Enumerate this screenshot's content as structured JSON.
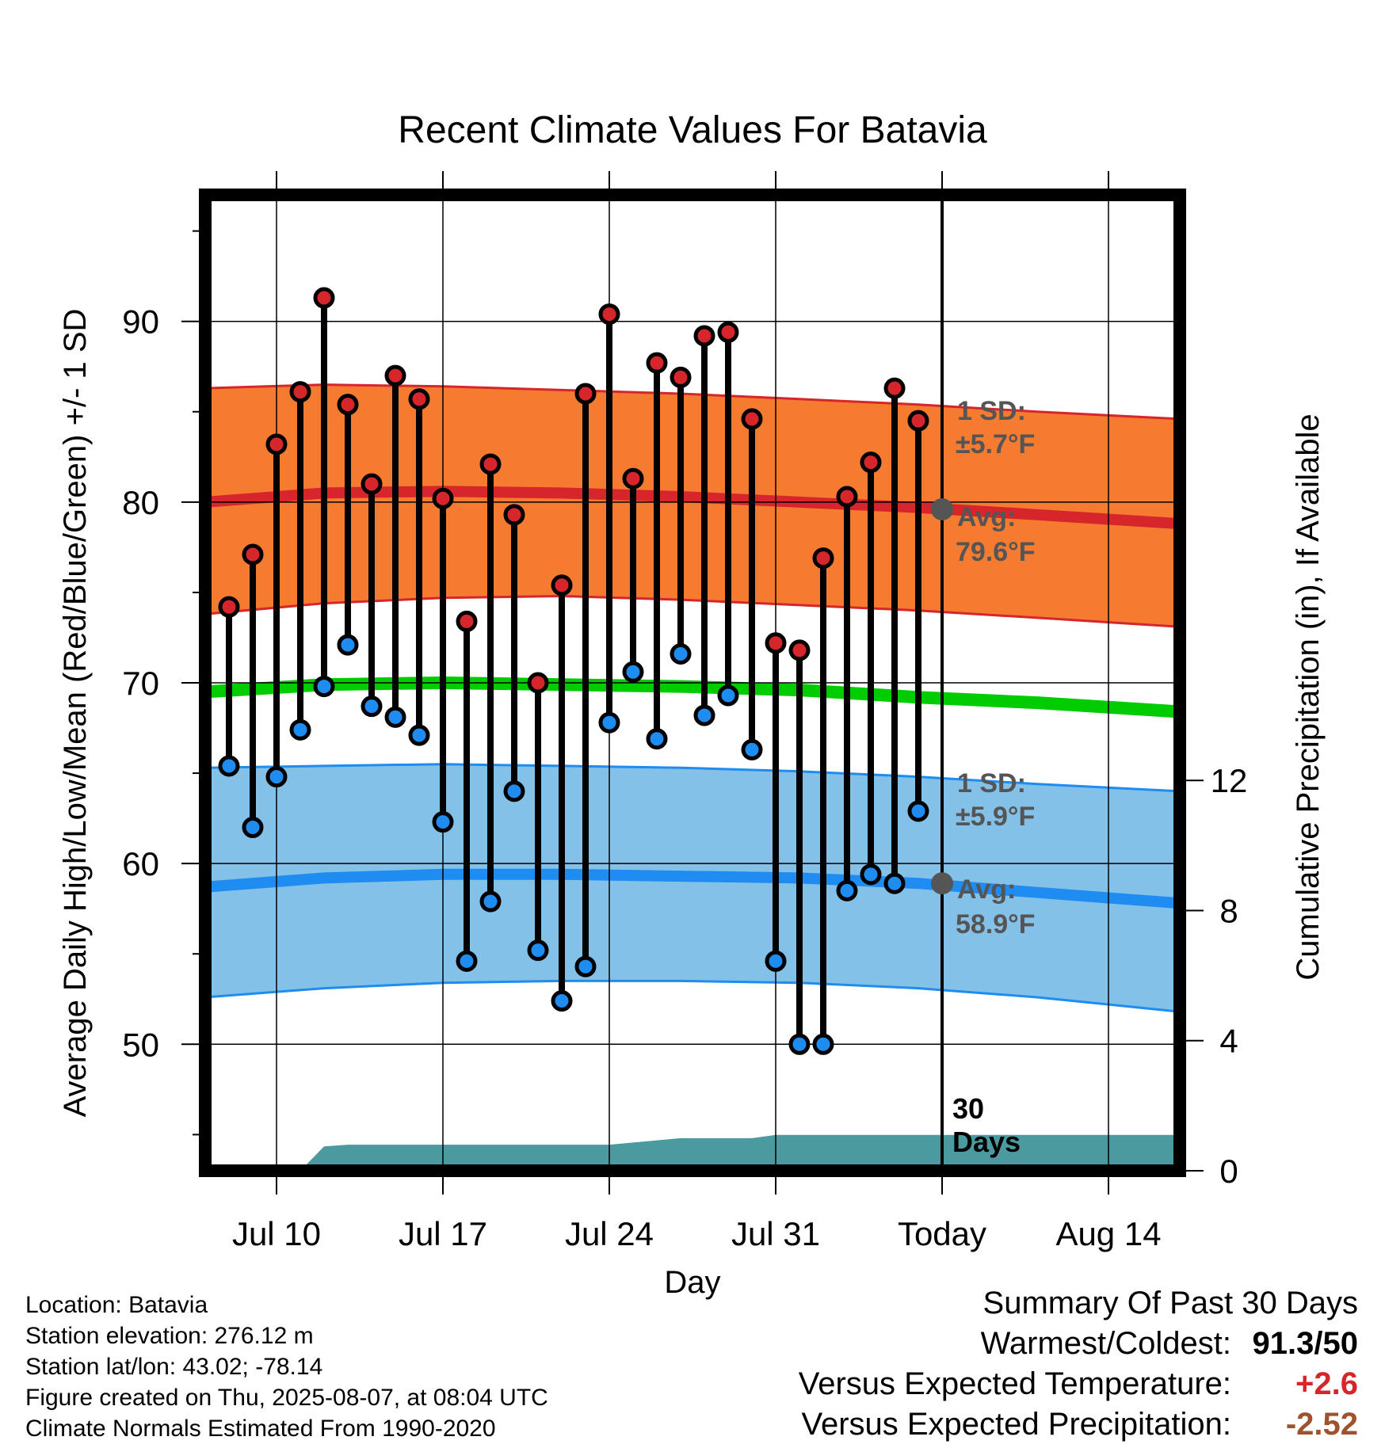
{
  "chart_data": {
    "type": "line",
    "title": "Recent Climate Values For Batavia",
    "xlabel": "Day",
    "ylabel": "Average Daily High/Low/Mean (Red/Blue/Green) +/- 1 SD",
    "y2label": "Cumulative Precipitation (in), If Available",
    "ylim": [
      43,
      97
    ],
    "y2lim": [
      0,
      30
    ],
    "yticks": [
      50,
      60,
      70,
      80,
      90
    ],
    "y2ticks": [
      0,
      4,
      8,
      12
    ],
    "xrange": [
      "Jul 7",
      "Aug 17"
    ],
    "xtick_labels": [
      "Jul 10",
      "Jul 17",
      "Jul 24",
      "Jul 31",
      "Today",
      "Aug 14"
    ],
    "xtick_dates": [
      "Jul 10",
      "Jul 17",
      "Jul 24",
      "Jul 31",
      "Aug 7",
      "Aug 14"
    ],
    "today": "Aug 7",
    "grid": true,
    "observed": {
      "dates": [
        "Jul 8",
        "Jul 9",
        "Jul 10",
        "Jul 11",
        "Jul 12",
        "Jul 13",
        "Jul 14",
        "Jul 15",
        "Jul 16",
        "Jul 17",
        "Jul 18",
        "Jul 19",
        "Jul 20",
        "Jul 21",
        "Jul 22",
        "Jul 23",
        "Jul 24",
        "Jul 25",
        "Jul 26",
        "Jul 27",
        "Jul 28",
        "Jul 29",
        "Jul 30",
        "Jul 31",
        "Aug 1",
        "Aug 2",
        "Aug 3",
        "Aug 4",
        "Aug 5",
        "Aug 6"
      ],
      "high": [
        74.2,
        77.1,
        83.2,
        86.1,
        91.3,
        85.4,
        81.0,
        87.0,
        85.7,
        80.2,
        73.4,
        82.1,
        79.3,
        70.0,
        75.4,
        86.0,
        90.4,
        81.3,
        87.7,
        86.9,
        89.2,
        89.4,
        84.6,
        72.2,
        71.8,
        76.9,
        80.3,
        82.2,
        86.3,
        84.5
      ],
      "low": [
        65.4,
        62.0,
        64.8,
        67.4,
        69.8,
        72.1,
        68.7,
        68.1,
        67.1,
        62.3,
        54.6,
        57.9,
        64.0,
        55.2,
        52.4,
        54.3,
        67.8,
        70.6,
        66.9,
        71.6,
        68.2,
        69.3,
        66.3,
        54.6,
        50.0,
        50.0,
        58.5,
        59.4,
        58.9,
        62.9
      ]
    },
    "normals": {
      "dates": [
        "Jul 7",
        "Jul 12",
        "Jul 17",
        "Jul 22",
        "Jul 27",
        "Aug 1",
        "Aug 6",
        "Aug 11",
        "Aug 17"
      ],
      "high_avg": [
        80.0,
        80.5,
        80.6,
        80.5,
        80.3,
        80.0,
        79.7,
        79.3,
        78.8
      ],
      "high_upper": [
        86.3,
        86.5,
        86.4,
        86.2,
        86.0,
        85.7,
        85.4,
        85.0,
        84.6
      ],
      "high_lower": [
        73.8,
        74.4,
        74.7,
        74.8,
        74.6,
        74.3,
        74.0,
        73.6,
        73.1
      ],
      "mean": [
        69.5,
        69.9,
        70.0,
        69.9,
        69.8,
        69.6,
        69.2,
        68.9,
        68.4
      ],
      "low_avg": [
        58.7,
        59.2,
        59.4,
        59.4,
        59.3,
        59.2,
        58.9,
        58.4,
        57.8
      ],
      "low_upper": [
        65.3,
        65.4,
        65.5,
        65.4,
        65.3,
        65.1,
        64.8,
        64.4,
        64.0
      ],
      "low_lower": [
        52.6,
        53.1,
        53.4,
        53.5,
        53.5,
        53.4,
        53.1,
        52.6,
        51.8
      ]
    },
    "precip": {
      "dates": [
        "Jul 7",
        "Jul 11",
        "Jul 12",
        "Jul 13",
        "Jul 23",
        "Jul 24",
        "Jul 27",
        "Jul 30",
        "Jul 31",
        "Aug 17"
      ],
      "values": [
        0.0,
        0.0,
        0.75,
        0.8,
        0.8,
        0.8,
        1.0,
        1.0,
        1.1,
        1.1
      ]
    },
    "annotations": {
      "high_sd_title": "1 SD:",
      "high_sd_value": "±5.7°F",
      "high_avg_title": "Avg:",
      "high_avg_value": "79.6°F",
      "low_sd_title": "1 SD:",
      "low_sd_value": "±5.9°F",
      "low_avg_title": "Avg:",
      "low_avg_value": "58.9°F",
      "days_number": "30",
      "days_word": "Days"
    },
    "today_values": {
      "high_avg": 79.6,
      "low_avg": 58.9
    },
    "colors": {
      "high_band": "#F47B2F",
      "high_line": "#D7262B",
      "mean_line": "#00CC00",
      "low_band": "#84C1E8",
      "low_line": "#1E8CF0",
      "precip": "#4A9AA0",
      "high_marker": "#D7262B",
      "low_marker": "#1E8CF0",
      "today_marker": "#555555",
      "warm": "#D7262B",
      "precip_deficit": "#A0522D"
    }
  },
  "footer": {
    "location": "Location: Batavia",
    "elevation": "Station elevation: 276.12 m",
    "latlon": "Station lat/lon: 43.02; -78.14",
    "created": "Figure created on Thu, 2025-08-07, at 08:04 UTC",
    "normals": "Climate Normals Estimated From 1990-2020"
  },
  "summary": {
    "title": "Summary Of Past 30 Days",
    "warmest_label": "Warmest/Coldest:",
    "warmest_value": "91.3/50",
    "temp_label": "Versus Expected Temperature:",
    "temp_value": "+2.6",
    "precip_label": "Versus Expected Precipitation:",
    "precip_value": "-2.52"
  }
}
